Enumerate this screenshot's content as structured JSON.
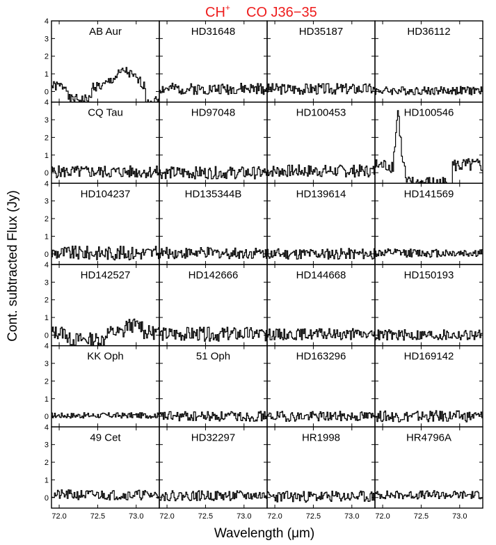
{
  "chart_data": {
    "type": "line",
    "title_lines": [
      {
        "text": "CH",
        "sup": "+"
      },
      {
        "text": "CO J36−35"
      }
    ],
    "title_color": "#ee1c1c",
    "xlabel": "Wavelength (μm)",
    "ylabel": "Cont. subtracted Flux (Jy)",
    "xlim": [
      71.9,
      73.3
    ],
    "ylim": [
      -0.6,
      4.0
    ],
    "xticks": [
      72.0,
      72.5,
      73.0
    ],
    "xtick_labels": [
      "72.0",
      "72.5",
      "73.0"
    ],
    "yticks": [
      0,
      1,
      2,
      3,
      4
    ],
    "ytick_labels": [
      "0",
      "1",
      "2",
      "3",
      "4"
    ],
    "grid": false,
    "line_color": "#000000",
    "panel_titles": [
      [
        "AB Aur",
        "HD31648",
        "HD35187",
        "HD36112"
      ],
      [
        "CQ Tau",
        "HD97048",
        "HD100453",
        "HD100546"
      ],
      [
        "HD104237",
        "HD135344B",
        "HD139614",
        "HD141569"
      ],
      [
        "HD142527",
        "HD142666",
        "HD144668",
        "HD150193"
      ],
      [
        "KK Oph",
        "51 Oph",
        "HD163296",
        "HD169142"
      ],
      [
        "49 Cet",
        "HD32297",
        "HR1998",
        "HR4796A"
      ]
    ],
    "series_shapes": [
      [
        {
          "base": 0.3,
          "noise": 0.18,
          "features": [
            {
              "x0": 71.9,
              "x1": 72.12,
              "dy": 0.0
            },
            {
              "x0": 72.12,
              "x1": 72.42,
              "dy": -0.75
            },
            {
              "x0": 72.55,
              "x1": 73.1,
              "dy": 0.45,
              "bump": 0.9,
              "center": 72.85
            },
            {
              "x0": 73.12,
              "x1": 73.3,
              "dy": -0.8
            }
          ],
          "seed": 1
        },
        {
          "base": 0.15,
          "noise": 0.2,
          "features": [],
          "seed": 2
        },
        {
          "base": 0.15,
          "noise": 0.2,
          "features": [],
          "seed": 3
        },
        {
          "base": 0.05,
          "noise": 0.15,
          "features": [],
          "seed": 4
        }
      ],
      [
        {
          "base": 0.05,
          "noise": 0.22,
          "features": [],
          "seed": 5
        },
        {
          "base": 0.0,
          "noise": 0.22,
          "features": [],
          "seed": 6
        },
        {
          "base": 0.1,
          "noise": 0.22,
          "features": [],
          "seed": 7
        },
        {
          "base": 0.4,
          "noise": 0.25,
          "features": [
            {
              "x0": 72.12,
              "x1": 72.25,
              "dy": 3.0,
              "bump": 3.2,
              "center": 72.2
            },
            {
              "x0": 72.3,
              "x1": 72.9,
              "dy": -1.0
            }
          ],
          "seed": 8
        }
      ],
      [
        {
          "base": 0.05,
          "noise": 0.25,
          "features": [],
          "seed": 9
        },
        {
          "base": 0.05,
          "noise": 0.2,
          "features": [],
          "seed": 10
        },
        {
          "base": 0.0,
          "noise": 0.2,
          "features": [],
          "seed": 11
        },
        {
          "base": 0.05,
          "noise": 0.15,
          "features": [],
          "seed": 12
        }
      ],
      [
        {
          "base": 0.15,
          "noise": 0.25,
          "features": [
            {
              "x0": 72.1,
              "x1": 72.6,
              "dy": -0.4
            },
            {
              "x0": 72.85,
              "x1": 73.1,
              "dy": 0.4
            }
          ],
          "seed": 13
        },
        {
          "base": 0.05,
          "noise": 0.25,
          "features": [],
          "seed": 14
        },
        {
          "base": 0.05,
          "noise": 0.2,
          "features": [],
          "seed": 15
        },
        {
          "base": 0.0,
          "noise": 0.2,
          "features": [],
          "seed": 16
        }
      ],
      [
        {
          "base": 0.05,
          "noise": 0.1,
          "features": [],
          "seed": 17
        },
        {
          "base": 0.0,
          "noise": 0.18,
          "features": [],
          "seed": 18
        },
        {
          "base": 0.0,
          "noise": 0.18,
          "features": [],
          "seed": 19
        },
        {
          "base": 0.0,
          "noise": 0.2,
          "features": [],
          "seed": 20
        }
      ],
      [
        {
          "base": 0.15,
          "noise": 0.18,
          "features": [],
          "seed": 21
        },
        {
          "base": 0.1,
          "noise": 0.18,
          "features": [],
          "seed": 22
        },
        {
          "base": 0.05,
          "noise": 0.2,
          "features": [],
          "seed": 23
        },
        {
          "base": 0.15,
          "noise": 0.15,
          "features": [],
          "seed": 24
        }
      ]
    ]
  }
}
